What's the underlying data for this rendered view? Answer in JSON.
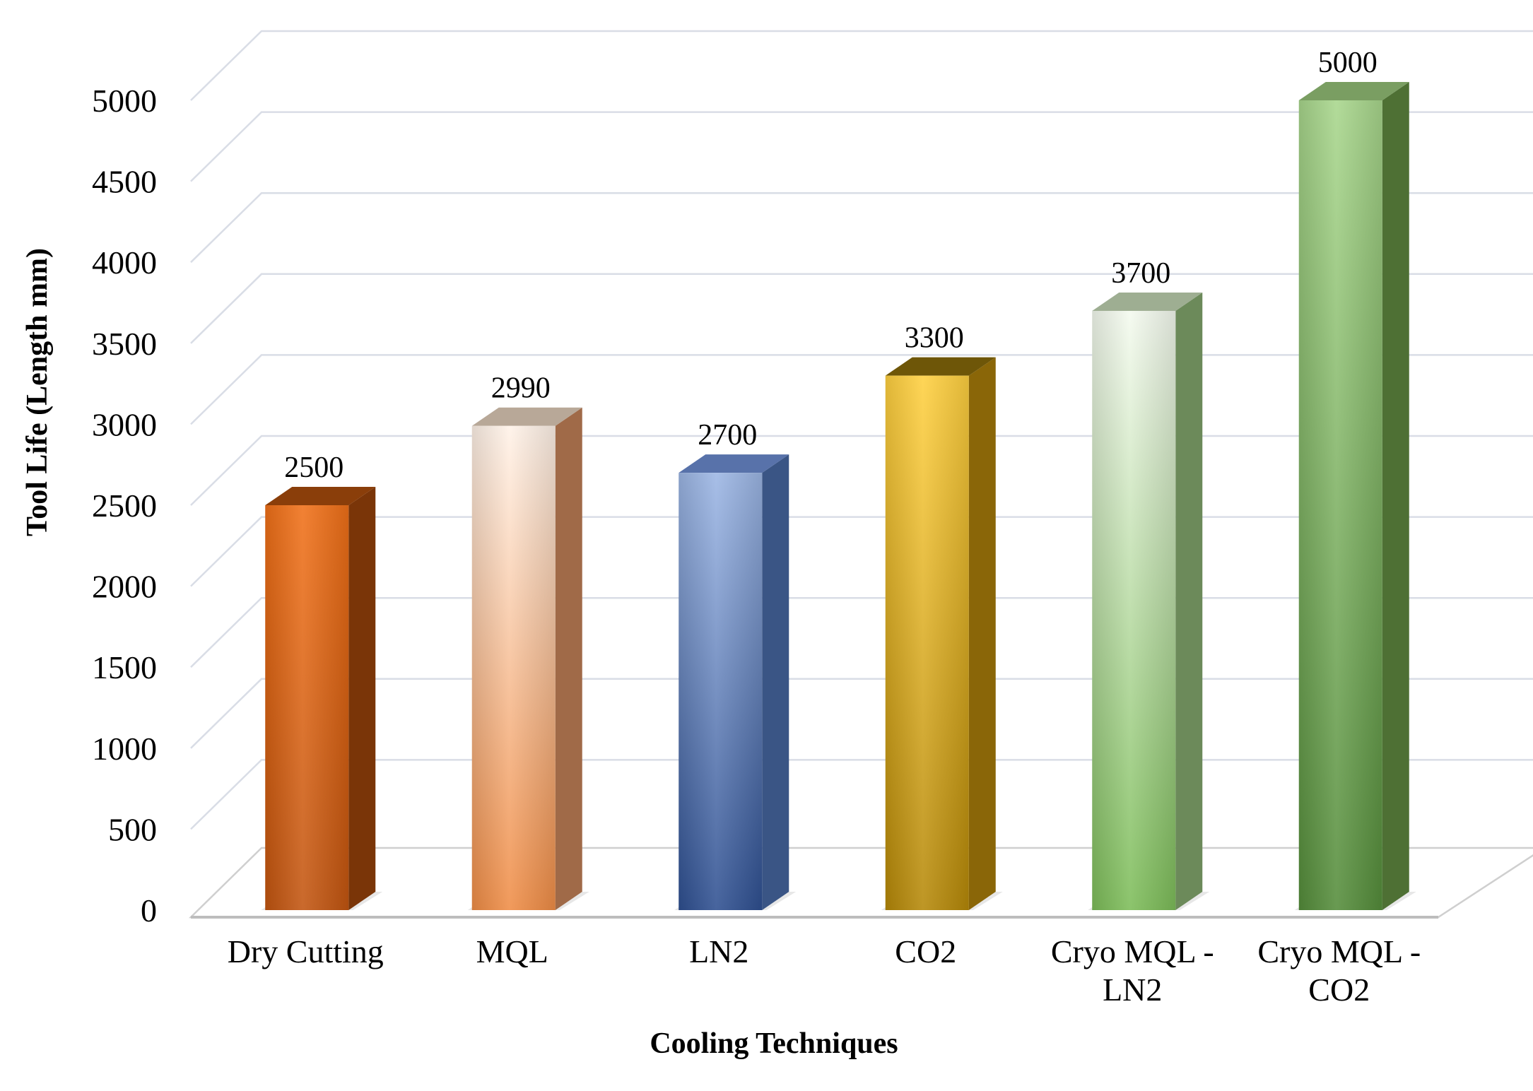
{
  "chart_data": {
    "type": "bar",
    "style": "3d-column",
    "title": "",
    "xlabel": "Cooling Techniques",
    "ylabel": "Tool Life (Length mm)",
    "ylim": [
      0,
      5000
    ],
    "y_ticks": [
      "0",
      "500",
      "1000",
      "1500",
      "2000",
      "2500",
      "3000",
      "3500",
      "4000",
      "4500",
      "5000"
    ],
    "grid": true,
    "legend": "none",
    "categories": [
      [
        "Dry Cutting"
      ],
      [
        "MQL"
      ],
      [
        "LN2"
      ],
      [
        "CO2"
      ],
      [
        "Cryo MQL -",
        "LN2"
      ],
      [
        "Cryo MQL -",
        "CO2"
      ]
    ],
    "values": [
      2500,
      2990,
      2700,
      3300,
      3700,
      5000
    ],
    "value_labels": [
      "2500",
      "2990",
      "2700",
      "3300",
      "3700",
      "5000"
    ],
    "bar_colors": [
      {
        "top": "#8a3e0a",
        "light": "#f07018",
        "dark": "#c25510",
        "side": "#7a3508"
      },
      {
        "top": "#b8a898",
        "light": "#fff2e8",
        "dark": "#ef8c45",
        "side": "#a06a48"
      },
      {
        "top": "#5872aa",
        "light": "#9cb6e4",
        "dark": "#2e4f90",
        "side": "#3a5585"
      },
      {
        "top": "#6e5608",
        "light": "#ffd040",
        "dark": "#b58808",
        "side": "#8a6608"
      },
      {
        "top": "#9eae92",
        "light": "#f4faef",
        "dark": "#7cbc58",
        "side": "#6c8a5a"
      },
      {
        "top": "#7a9e62",
        "light": "#a8d68c",
        "dark": "#548c3a",
        "side": "#4e7034"
      }
    ]
  }
}
